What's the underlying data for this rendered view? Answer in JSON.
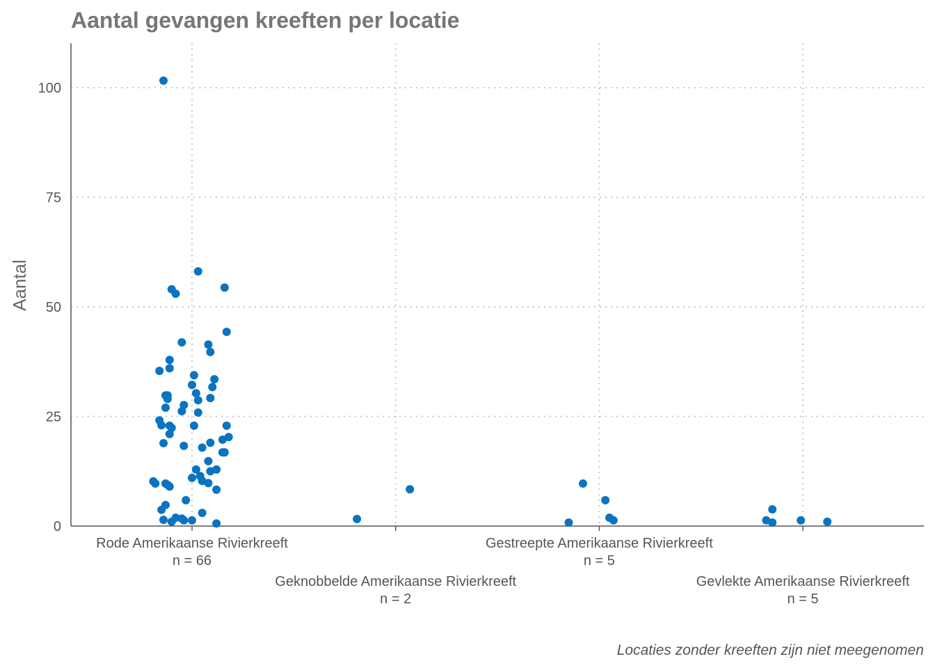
{
  "chart_data": {
    "type": "scatter",
    "subtype": "jittered strip plot",
    "title": "Aantal gevangen kreeften per locatie",
    "xlabel": "",
    "ylabel": "Aantal",
    "caption": "Locaties zonder kreeften zijn niet meegenomen",
    "ylim": [
      0,
      110
    ],
    "yticks": [
      0,
      25,
      50,
      75,
      100
    ],
    "grid": "dotted, major x and y",
    "point_color": "#0A74C0",
    "categories": [
      {
        "label": "Rode Amerikaanse Rivierkreeft",
        "n": "n = 66"
      },
      {
        "label": "Geknobbelde Amerikaanse Rivierkreeft",
        "n": "n = 2"
      },
      {
        "label": "Gestreepte Amerikaanse Rivierkreeft",
        "n": "n = 5"
      },
      {
        "label": "Gevlekte Amerikaanse Rivierkreeft",
        "n": "n = 5"
      }
    ],
    "points": [
      {
        "cat": 0,
        "jitter": -0.14,
        "y": 101.6
      },
      {
        "cat": 0,
        "jitter": 0.03,
        "y": 58.1
      },
      {
        "cat": 0,
        "jitter": -0.1,
        "y": 54
      },
      {
        "cat": 0,
        "jitter": -0.08,
        "y": 53
      },
      {
        "cat": 0,
        "jitter": 0.16,
        "y": 54.4
      },
      {
        "cat": 0,
        "jitter": 0.17,
        "y": 44.3
      },
      {
        "cat": 0,
        "jitter": -0.05,
        "y": 41.9
      },
      {
        "cat": 0,
        "jitter": 0.08,
        "y": 41.4
      },
      {
        "cat": 0,
        "jitter": 0.09,
        "y": 39.7
      },
      {
        "cat": 0,
        "jitter": -0.11,
        "y": 37.9
      },
      {
        "cat": 0,
        "jitter": -0.11,
        "y": 36
      },
      {
        "cat": 0,
        "jitter": -0.16,
        "y": 35.4
      },
      {
        "cat": 0,
        "jitter": 0.01,
        "y": 34.4
      },
      {
        "cat": 0,
        "jitter": 0.11,
        "y": 33.5
      },
      {
        "cat": 0,
        "jitter": 0.0,
        "y": 32.2
      },
      {
        "cat": 0,
        "jitter": 0.1,
        "y": 31.7
      },
      {
        "cat": 0,
        "jitter": 0.02,
        "y": 30.3
      },
      {
        "cat": 0,
        "jitter": -0.13,
        "y": 29.8
      },
      {
        "cat": 0,
        "jitter": -0.12,
        "y": 29.8
      },
      {
        "cat": 0,
        "jitter": -0.12,
        "y": 29
      },
      {
        "cat": 0,
        "jitter": 0.09,
        "y": 29.2
      },
      {
        "cat": 0,
        "jitter": 0.03,
        "y": 28.7
      },
      {
        "cat": 0,
        "jitter": -0.04,
        "y": 27.6
      },
      {
        "cat": 0,
        "jitter": -0.13,
        "y": 27
      },
      {
        "cat": 0,
        "jitter": -0.05,
        "y": 26.2
      },
      {
        "cat": 0,
        "jitter": 0.03,
        "y": 25.9
      },
      {
        "cat": 0,
        "jitter": -0.16,
        "y": 24.1
      },
      {
        "cat": 0,
        "jitter": -0.15,
        "y": 23
      },
      {
        "cat": 0,
        "jitter": -0.11,
        "y": 22.9
      },
      {
        "cat": 0,
        "jitter": -0.1,
        "y": 22.4
      },
      {
        "cat": 0,
        "jitter": 0.01,
        "y": 22.9
      },
      {
        "cat": 0,
        "jitter": 0.17,
        "y": 22.9
      },
      {
        "cat": 0,
        "jitter": -0.11,
        "y": 21
      },
      {
        "cat": 0,
        "jitter": 0.18,
        "y": 20.3
      },
      {
        "cat": 0,
        "jitter": 0.15,
        "y": 19.7
      },
      {
        "cat": 0,
        "jitter": 0.09,
        "y": 19
      },
      {
        "cat": 0,
        "jitter": -0.14,
        "y": 18.9
      },
      {
        "cat": 0,
        "jitter": -0.04,
        "y": 18.3
      },
      {
        "cat": 0,
        "jitter": 0.05,
        "y": 17.9
      },
      {
        "cat": 0,
        "jitter": 0.15,
        "y": 16.8
      },
      {
        "cat": 0,
        "jitter": 0.16,
        "y": 16.8
      },
      {
        "cat": 0,
        "jitter": 0.08,
        "y": 14.8
      },
      {
        "cat": 0,
        "jitter": 0.02,
        "y": 12.9
      },
      {
        "cat": 0,
        "jitter": 0.12,
        "y": 12.9
      },
      {
        "cat": 0,
        "jitter": 0.09,
        "y": 12.5
      },
      {
        "cat": 0,
        "jitter": 0.04,
        "y": 11.4
      },
      {
        "cat": 0,
        "jitter": 0.0,
        "y": 11
      },
      {
        "cat": 0,
        "jitter": 0.05,
        "y": 10.3
      },
      {
        "cat": 0,
        "jitter": -0.19,
        "y": 10.2
      },
      {
        "cat": 0,
        "jitter": -0.18,
        "y": 9.7
      },
      {
        "cat": 0,
        "jitter": -0.13,
        "y": 9.7
      },
      {
        "cat": 0,
        "jitter": -0.12,
        "y": 9.4
      },
      {
        "cat": 0,
        "jitter": -0.11,
        "y": 9
      },
      {
        "cat": 0,
        "jitter": 0.08,
        "y": 9.8
      },
      {
        "cat": 0,
        "jitter": 0.12,
        "y": 8.3
      },
      {
        "cat": 0,
        "jitter": -0.03,
        "y": 5.9
      },
      {
        "cat": 0,
        "jitter": -0.13,
        "y": 4.8
      },
      {
        "cat": 0,
        "jitter": -0.15,
        "y": 3.7
      },
      {
        "cat": 0,
        "jitter": 0.05,
        "y": 3
      },
      {
        "cat": 0,
        "jitter": -0.08,
        "y": 1.9
      },
      {
        "cat": 0,
        "jitter": -0.05,
        "y": 1.7
      },
      {
        "cat": 0,
        "jitter": -0.04,
        "y": 1.3
      },
      {
        "cat": 0,
        "jitter": -0.1,
        "y": 1
      },
      {
        "cat": 0,
        "jitter": 0.0,
        "y": 1.3
      },
      {
        "cat": 0,
        "jitter": 0.12,
        "y": 0.6
      },
      {
        "cat": 0,
        "jitter": -0.14,
        "y": 1.4
      },
      {
        "cat": 1,
        "jitter": -0.19,
        "y": 1.6
      },
      {
        "cat": 1,
        "jitter": 0.07,
        "y": 8.4
      },
      {
        "cat": 2,
        "jitter": -0.15,
        "y": 0.8
      },
      {
        "cat": 2,
        "jitter": -0.08,
        "y": 9.7
      },
      {
        "cat": 2,
        "jitter": 0.03,
        "y": 5.9
      },
      {
        "cat": 2,
        "jitter": 0.05,
        "y": 1.9
      },
      {
        "cat": 2,
        "jitter": 0.07,
        "y": 1.3
      },
      {
        "cat": 3,
        "jitter": -0.18,
        "y": 1.3
      },
      {
        "cat": 3,
        "jitter": -0.15,
        "y": 3.8
      },
      {
        "cat": 3,
        "jitter": -0.15,
        "y": 0.8
      },
      {
        "cat": 3,
        "jitter": -0.01,
        "y": 1.3
      },
      {
        "cat": 3,
        "jitter": 0.12,
        "y": 1
      }
    ]
  }
}
